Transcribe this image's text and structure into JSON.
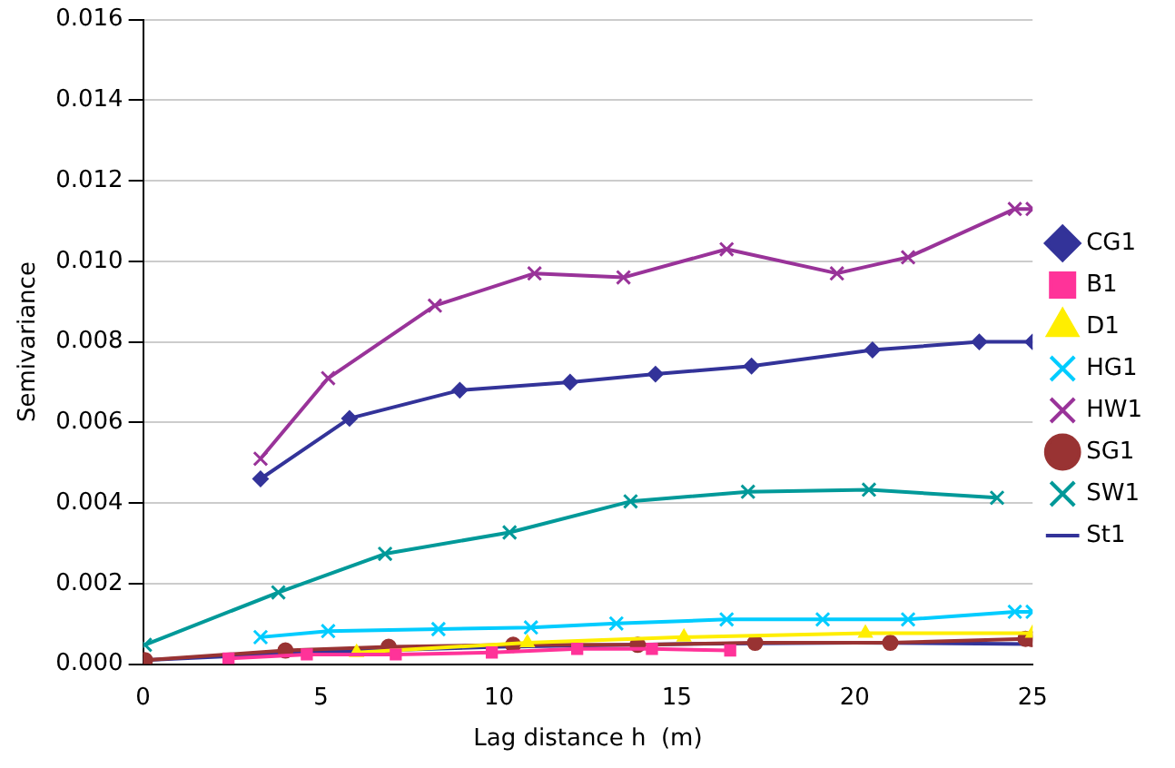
{
  "chart_data": {
    "type": "line",
    "xlabel": "Lag distance h  (m)",
    "ylabel": "Semivariance",
    "xlim": [
      0,
      25
    ],
    "xticks": [
      0,
      5,
      10,
      15,
      20,
      25
    ],
    "ylim": [
      0,
      0.016
    ],
    "yticks": [
      {
        "value": 0,
        "label": "0.000"
      },
      {
        "value": 0.002,
        "label": "0.002"
      },
      {
        "value": 0.004,
        "label": "0.004"
      },
      {
        "value": 0.006,
        "label": "0.006"
      },
      {
        "value": 0.008,
        "label": "0.008"
      },
      {
        "value": 0.01,
        "label": "0.010"
      },
      {
        "value": 0.012,
        "label": "0.012"
      },
      {
        "value": 0.014,
        "label": "0.014"
      },
      {
        "value": 0.016,
        "label": "0.016"
      }
    ],
    "grid": "y",
    "legend": "right",
    "line_style": "solid",
    "series": [
      {
        "name": "CG1",
        "color": "#333399",
        "marker": "diamond",
        "x": [
          3.3,
          5.8,
          8.9,
          12.0,
          14.4,
          17.1,
          20.5,
          23.5,
          25
        ],
        "values": [
          0.0046,
          0.0061,
          0.0068,
          0.007,
          0.0072,
          0.0074,
          0.0078,
          0.008,
          0.008
        ]
      },
      {
        "name": "B1",
        "color": "#ff3399",
        "marker": "square",
        "x": [
          2.4,
          4.6,
          7.1,
          9.8,
          12.2,
          14.3,
          16.5
        ],
        "values": [
          0.00014,
          0.00024,
          0.00024,
          0.00029,
          0.00038,
          0.00038,
          0.00034
        ]
      },
      {
        "name": "D1",
        "color": "#ffee00",
        "marker": "triangle",
        "x": [
          6.0,
          10.8,
          15.2,
          20.3,
          25
        ],
        "values": [
          0.00029,
          0.00053,
          0.00067,
          0.00077,
          0.00077
        ]
      },
      {
        "name": "HG1",
        "color": "#00ccff",
        "marker": "cross",
        "x": [
          3.3,
          5.2,
          8.3,
          10.9,
          13.3,
          16.4,
          19.1,
          21.5,
          24.5,
          25
        ],
        "values": [
          0.00067,
          0.00082,
          0.00087,
          0.00091,
          0.00101,
          0.00111,
          0.00111,
          0.00111,
          0.0013,
          0.0013
        ]
      },
      {
        "name": "HW1",
        "color": "#993399",
        "marker": "cross",
        "x": [
          3.3,
          5.2,
          8.2,
          11.0,
          13.5,
          16.4,
          19.5,
          21.5,
          24.5,
          25
        ],
        "values": [
          0.0051,
          0.0071,
          0.0089,
          0.0097,
          0.0096,
          0.0103,
          0.0097,
          0.0101,
          0.0113,
          0.0113
        ]
      },
      {
        "name": "SG1",
        "color": "#993333",
        "marker": "circle",
        "x": [
          0.05,
          4.0,
          6.9,
          10.4,
          13.9,
          17.2,
          21.0,
          24.8,
          25
        ],
        "values": [
          0.0001,
          0.00034,
          0.00043,
          0.00048,
          0.00048,
          0.00053,
          0.00053,
          0.00063,
          0.00062
        ]
      },
      {
        "name": "SW1",
        "color": "#009999",
        "marker": "cross",
        "x": [
          0.05,
          3.8,
          6.8,
          10.3,
          13.7,
          17.0,
          20.4,
          24.0
        ],
        "values": [
          0.00048,
          0.00178,
          0.00274,
          0.00327,
          0.00404,
          0.00428,
          0.00433,
          0.00413
        ]
      },
      {
        "name": "St1",
        "color": "#333399",
        "marker": "none",
        "x": [
          0,
          5,
          10,
          15,
          20,
          25
        ],
        "values": [
          0.0001,
          0.0003,
          0.00043,
          0.0005,
          0.00053,
          0.0005
        ]
      }
    ]
  }
}
